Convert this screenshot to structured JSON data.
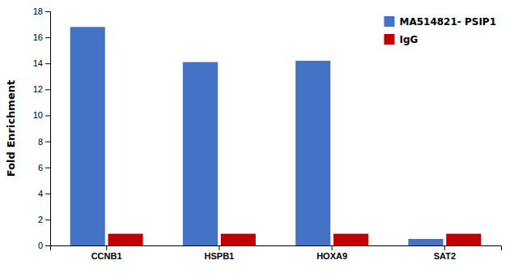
{
  "chart_data": {
    "type": "bar",
    "categories": [
      "CCNB1",
      "HSPB1",
      "HOXA9",
      "SAT2"
    ],
    "series": [
      {
        "name": "MA514821- PSIP1",
        "color": "#4472C4",
        "values": [
          16.8,
          14.1,
          14.2,
          0.5
        ]
      },
      {
        "name": "IgG",
        "color": "#C00000",
        "values": [
          0.9,
          0.9,
          0.9,
          0.9
        ]
      }
    ],
    "ylabel": "Fold Enrichment",
    "ylim": [
      0,
      18
    ],
    "yticks": [
      0,
      2,
      4,
      6,
      8,
      10,
      12,
      14,
      16,
      18
    ],
    "legend": "upper-right",
    "grid": false
  }
}
